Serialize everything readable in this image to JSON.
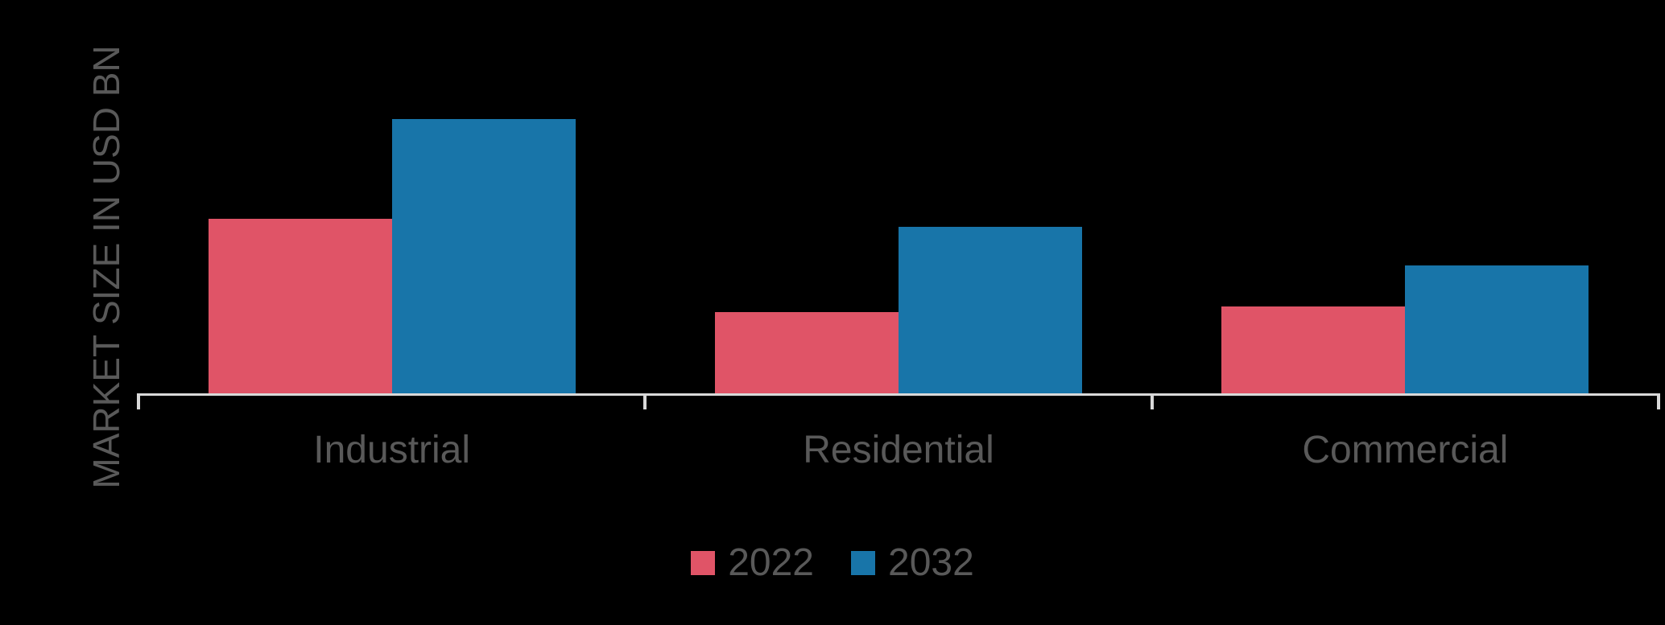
{
  "chart_data": {
    "type": "bar",
    "title": "",
    "xlabel": "",
    "ylabel": "MARKET SIZE IN USD BN",
    "categories": [
      "Industrial",
      "Residential",
      "Commercial"
    ],
    "series": [
      {
        "name": "2022",
        "color": "#E05467",
        "values": [
          64,
          30,
          32
        ]
      },
      {
        "name": "2032",
        "color": "#1875A9",
        "values": [
          100,
          61,
          47
        ]
      }
    ],
    "ylim": [
      0,
      140
    ],
    "y_axis_tick_labels_visible": false,
    "grid": false,
    "legend_position": "bottom"
  },
  "colors": {
    "background": "#000000",
    "axis_line": "#D9D9D9",
    "text": "#595959"
  }
}
